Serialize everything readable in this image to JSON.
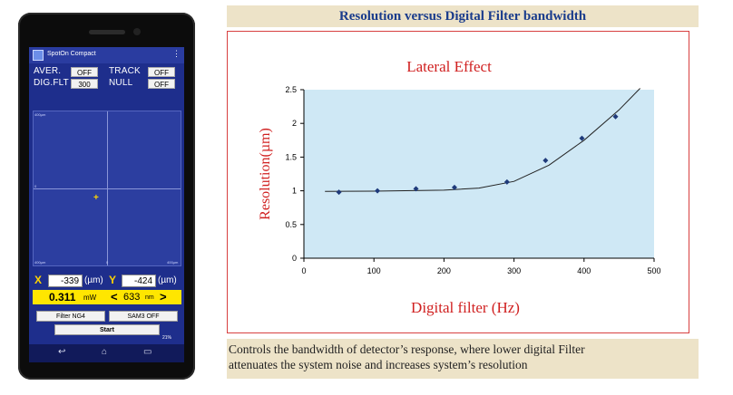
{
  "phone": {
    "app_title": "SpotOn Compact",
    "menu_icon": "overflow-menu-icon",
    "aver_label": "AVER.",
    "aver_value": "OFF",
    "track_label": "TRACK",
    "track_value": "OFF",
    "digflt_label": "DIG.FLT",
    "digflt_value": "300",
    "null_label": "NULL",
    "null_value": "OFF",
    "plot_tick_top": "400µm",
    "plot_tick_left": "0",
    "plot_tick_bl": "400µm",
    "plot_tick_bm": "0",
    "plot_tick_br": "400µm",
    "x_label": "X",
    "x_value": "-339",
    "x_unit": "(µm)",
    "y_label": "Y",
    "y_value": "-424",
    "y_unit": "(µm)",
    "power_value": "0.311",
    "power_unit": "mW",
    "wavelength_value": "633",
    "wavelength_unit": "nm",
    "filter_button": "Filter NG4",
    "sam_button": "SAM3 OFF",
    "start_button": "Start",
    "battery": "21%"
  },
  "slide": {
    "title": "Resolution versus Digital Filter bandwidth",
    "caption_line1": "Controls the bandwidth of detector’s response, where lower digital Filter",
    "caption_line2": "attenuates the system noise and increases system’s resolution"
  },
  "chart_data": {
    "type": "scatter",
    "title": "Lateral Effect",
    "xlabel": "Digital filter (Hz)",
    "ylabel": "Resolution(µm)",
    "xlim": [
      0,
      500
    ],
    "ylim": [
      0,
      2.5
    ],
    "xticks": [
      "0",
      "100",
      "200",
      "300",
      "400",
      "500"
    ],
    "yticks": [
      "0",
      "0.5",
      "1",
      "1.5",
      "2",
      "2.5"
    ],
    "grid": false,
    "background": "#cfe8f5",
    "point_color": "#1f3a7a",
    "x": [
      50,
      105,
      160,
      215,
      290,
      345,
      397,
      445
    ],
    "y": [
      0.98,
      1.0,
      1.03,
      1.05,
      1.13,
      1.45,
      1.78,
      2.1
    ],
    "trendline": {
      "x": [
        30,
        100,
        200,
        250,
        300,
        350,
        400,
        450,
        480
      ],
      "y": [
        0.99,
        0.995,
        1.01,
        1.04,
        1.14,
        1.38,
        1.75,
        2.2,
        2.55
      ]
    }
  }
}
